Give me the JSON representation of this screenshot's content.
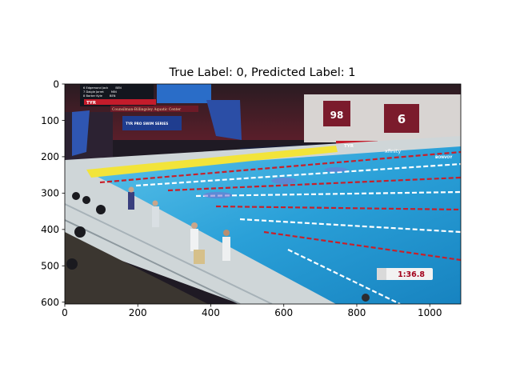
{
  "title": "True Label: 0, Predicted Label: 1",
  "overlay": {
    "scoreboard_rows": [
      {
        "rank": "6",
        "name": "Edgemond Jack",
        "team": "BEN"
      },
      {
        "rank": "7",
        "name": "Daigle Jarret",
        "team": "MIN"
      },
      {
        "rank": "8",
        "name": "Barker Kyle",
        "team": "BEN"
      }
    ],
    "venue_sign": "Counsilman-Billingsley Aquatic Center",
    "series_banner": "TYR PRO SWIM SERIES",
    "sponsor_tyr": "TYR",
    "sponsor_xfinity": "xfinity",
    "sponsor_bonvoy": "BONVOY",
    "banner_98": "98",
    "banner_6": "6",
    "race_clock": "1:36.8"
  },
  "colors": {
    "pool_water": "#2aa0d8",
    "lane_rope_red": "#c8202a",
    "deck_wall": "#8b1c2c",
    "clock_text": "#a3001b"
  },
  "chart_data": {
    "type": "image",
    "title": "True Label: 0, Predicted Label: 1",
    "xlim": [
      0,
      1085
    ],
    "ylim": [
      605,
      0
    ],
    "x_ticks": [
      0,
      200,
      400,
      600,
      800,
      1000
    ],
    "y_ticks": [
      0,
      100,
      200,
      300,
      400,
      500,
      600
    ],
    "x_tick_labels": [
      "0",
      "200",
      "400",
      "600",
      "800",
      "1000"
    ],
    "y_tick_labels": [
      "0",
      "100",
      "200",
      "300",
      "400",
      "500",
      "600"
    ],
    "grid": false
  }
}
